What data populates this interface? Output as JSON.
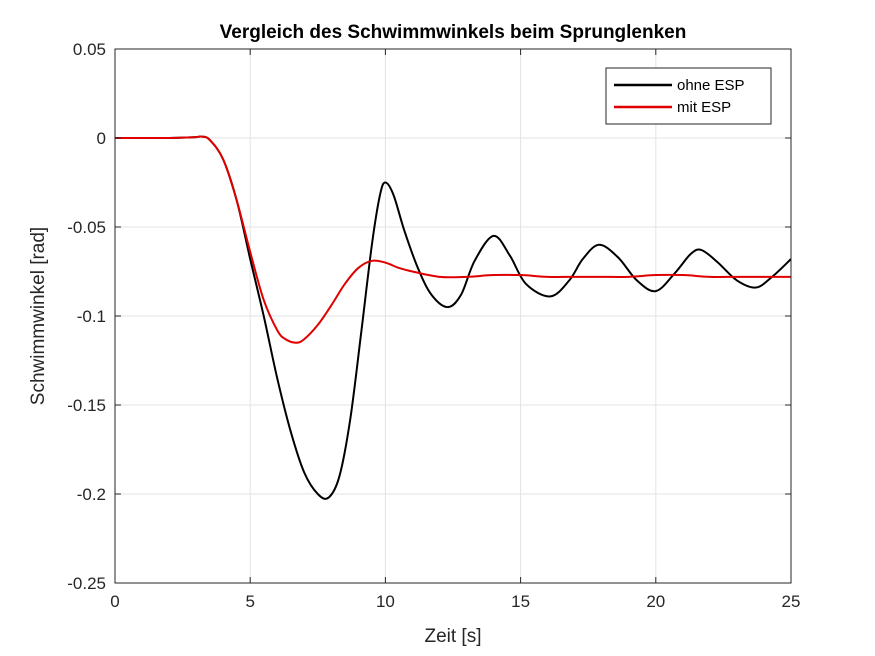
{
  "chart_data": {
    "type": "line",
    "title": "Vergleich des Schwimmwinkels beim Sprunglenken",
    "xlabel": "Zeit [s]",
    "ylabel": "Schwimmwinkel [rad]",
    "xlim": [
      0,
      25
    ],
    "ylim": [
      -0.25,
      0.05
    ],
    "xticks": [
      0,
      5,
      10,
      15,
      20,
      25
    ],
    "xtick_labels": [
      "0",
      "5",
      "10",
      "15",
      "20",
      "25"
    ],
    "yticks": [
      0.05,
      0,
      -0.05,
      -0.1,
      -0.15,
      -0.2,
      -0.25
    ],
    "ytick_labels": [
      "0.05",
      "0",
      "-0.05",
      "-0.1",
      "-0.15",
      "-0.2",
      "-0.25"
    ],
    "grid": true,
    "legend_position": "top-right",
    "series": [
      {
        "name": "ohne ESP",
        "color": "#000000",
        "x": [
          0,
          1,
          2,
          2.5,
          3,
          3.2,
          3.5,
          4,
          4.5,
          5,
          5.5,
          6,
          6.5,
          7,
          7.5,
          7.9,
          8.3,
          8.7,
          9.1,
          9.5,
          9.8,
          10,
          10.3,
          10.7,
          11.2,
          11.7,
          12.3,
          12.8,
          13.3,
          14,
          14.6,
          15.2,
          16.1,
          16.8,
          17.3,
          17.9,
          18.6,
          19.3,
          20,
          20.7,
          21.3,
          21.7,
          22.3,
          23,
          23.7,
          24.3,
          25
        ],
        "y": [
          0,
          0,
          0,
          0.0002,
          0.0005,
          0.0008,
          -0.001,
          -0.012,
          -0.035,
          -0.068,
          -0.1,
          -0.135,
          -0.165,
          -0.188,
          -0.2,
          -0.202,
          -0.19,
          -0.158,
          -0.11,
          -0.06,
          -0.032,
          -0.025,
          -0.032,
          -0.052,
          -0.073,
          -0.088,
          -0.095,
          -0.088,
          -0.069,
          -0.055,
          -0.066,
          -0.082,
          -0.089,
          -0.08,
          -0.068,
          -0.06,
          -0.067,
          -0.08,
          -0.086,
          -0.076,
          -0.065,
          -0.063,
          -0.07,
          -0.08,
          -0.084,
          -0.078,
          -0.068
        ]
      },
      {
        "name": "mit ESP",
        "color": "#e00000",
        "x": [
          0,
          1,
          2,
          2.5,
          3,
          3.2,
          3.5,
          4,
          4.5,
          5,
          5.5,
          6,
          6.3,
          6.7,
          7,
          7.5,
          8,
          8.5,
          9,
          9.5,
          10,
          10.5,
          11,
          12,
          13,
          14,
          15,
          16,
          17,
          18,
          19,
          20,
          21,
          22,
          23,
          24,
          25
        ],
        "y": [
          0,
          0,
          0,
          0.0002,
          0.0005,
          0.0008,
          -0.001,
          -0.012,
          -0.035,
          -0.064,
          -0.091,
          -0.108,
          -0.113,
          -0.115,
          -0.113,
          -0.105,
          -0.094,
          -0.082,
          -0.073,
          -0.069,
          -0.07,
          -0.073,
          -0.075,
          -0.078,
          -0.078,
          -0.077,
          -0.077,
          -0.078,
          -0.078,
          -0.078,
          -0.078,
          -0.077,
          -0.077,
          -0.078,
          -0.078,
          -0.078,
          -0.078
        ]
      }
    ]
  }
}
